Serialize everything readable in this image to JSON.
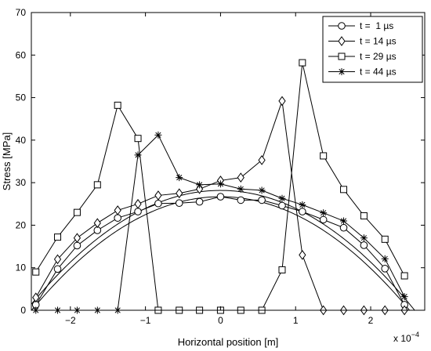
{
  "chart_data": {
    "type": "line",
    "title": "",
    "xlabel": "Horizontal position [m]",
    "ylabel": "Stress [MPa]",
    "x_multiplier_label": "x 10",
    "x_multiplier_exponent": "−4",
    "xlim": [
      -2.52,
      2.72
    ],
    "ylim": [
      0,
      70
    ],
    "xticks": [
      -2,
      -1,
      0,
      1,
      2
    ],
    "xtick_labels": [
      "−2",
      "−1",
      "0",
      "1",
      "2"
    ],
    "yticks": [
      0,
      10,
      20,
      30,
      40,
      50,
      60,
      70
    ],
    "ytick_labels": [
      "0",
      "10",
      "20",
      "30",
      "40",
      "50",
      "60",
      "70"
    ],
    "grid": false,
    "legend_position": "top-right",
    "series": [
      {
        "name": "t =  1 µs",
        "marker": "circle",
        "x": [
          -2.46,
          -2.17,
          -1.91,
          -1.64,
          -1.37,
          -1.1,
          -0.83,
          -0.55,
          -0.28,
          0.0,
          0.27,
          0.55,
          0.82,
          1.09,
          1.37,
          1.64,
          1.91,
          2.19,
          2.45
        ],
        "y": [
          1.3,
          9.7,
          15.2,
          18.8,
          21.7,
          23.2,
          25.1,
          25.2,
          25.5,
          26.7,
          25.9,
          25.9,
          24.6,
          23.2,
          21.3,
          19.4,
          15.3,
          9.8,
          1.3
        ]
      },
      {
        "name": "t = 14 µs",
        "marker": "diamond",
        "x": [
          -2.46,
          -2.17,
          -1.91,
          -1.64,
          -1.37,
          -1.1,
          -0.83,
          -0.55,
          -0.28,
          0.0,
          0.27,
          0.55,
          0.82,
          1.09,
          1.37,
          1.64,
          1.91,
          2.19,
          2.45
        ],
        "y": [
          3.0,
          12.0,
          17.0,
          20.5,
          23.5,
          25.0,
          27.0,
          27.5,
          28.5,
          30.5,
          31.2,
          35.3,
          49.2,
          13.0,
          0.0,
          0.0,
          0.0,
          0.0,
          0.0
        ]
      },
      {
        "name": "t = 29 µs",
        "marker": "square",
        "x": [
          -2.46,
          -2.17,
          -1.91,
          -1.64,
          -1.37,
          -1.1,
          -0.83,
          -0.55,
          -0.28,
          0.0,
          0.27,
          0.55,
          0.82,
          1.09,
          1.37,
          1.64,
          1.91,
          2.19,
          2.45
        ],
        "y": [
          9.0,
          17.2,
          23.0,
          29.5,
          48.2,
          40.4,
          0.0,
          0.0,
          0.0,
          0.0,
          0.0,
          0.0,
          9.5,
          58.2,
          36.3,
          28.4,
          22.2,
          16.7,
          8.1
        ]
      },
      {
        "name": "t = 44 µs",
        "marker": "star",
        "x": [
          -2.46,
          -2.17,
          -1.91,
          -1.64,
          -1.37,
          -1.1,
          -0.83,
          -0.55,
          -0.28,
          0.0,
          0.27,
          0.55,
          0.82,
          1.09,
          1.37,
          1.64,
          1.91,
          2.19,
          2.45
        ],
        "y": [
          0.0,
          0.0,
          0.0,
          0.0,
          0.0,
          36.5,
          41.2,
          31.2,
          29.5,
          29.7,
          28.5,
          28.2,
          26.3,
          24.8,
          22.9,
          21.0,
          17.0,
          12.1,
          3.2
        ]
      }
    ],
    "fit_curves_note_visible": false
  }
}
